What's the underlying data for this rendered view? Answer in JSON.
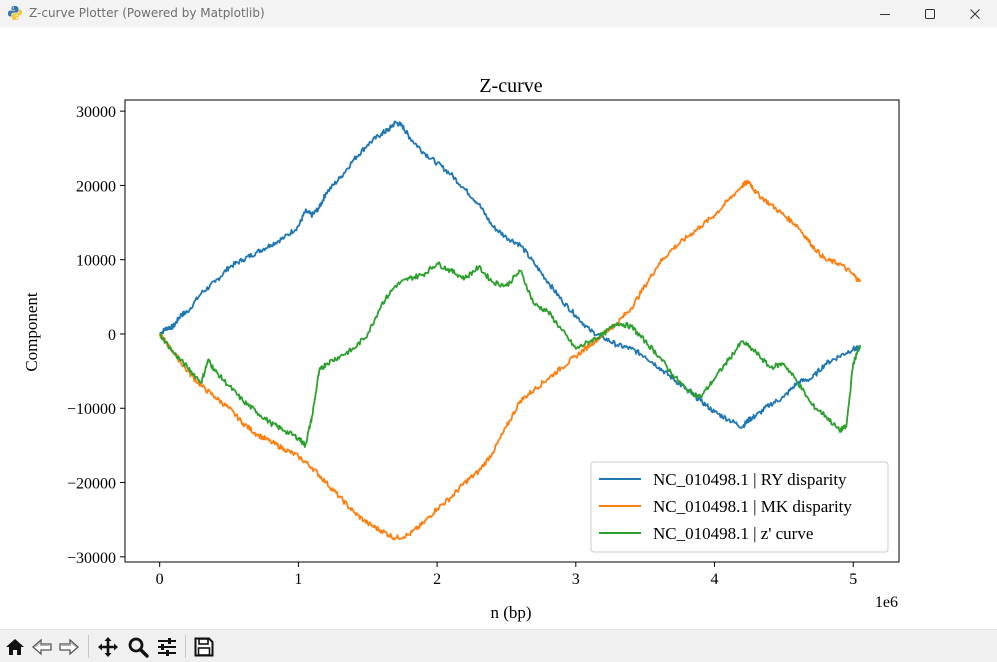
{
  "window": {
    "title": "Z-curve Plotter (Powered by Matplotlib)",
    "icon": "python-icon",
    "controls": [
      "minimize-icon",
      "maximize-icon",
      "close-icon"
    ]
  },
  "toolbar": {
    "tools": [
      "home-icon",
      "back-arrow-icon",
      "forward-arrow-icon",
      "pan-move-icon",
      "zoom-magnifier-icon",
      "configure-subplots-icon",
      "save-floppy-icon"
    ]
  },
  "chart_data": {
    "type": "line",
    "title": "Z-curve",
    "xlabel": "n (bp)",
    "ylabel": "Component",
    "x_offset_text": "1e6",
    "xlim": [
      -0.25,
      5.33
    ],
    "ylim": [
      -30700,
      31500
    ],
    "xticks": [
      0,
      1,
      2,
      3,
      4,
      5
    ],
    "xtick_labels": [
      "0",
      "1",
      "2",
      "3",
      "4",
      "5"
    ],
    "yticks": [
      30000,
      20000,
      10000,
      0,
      -10000,
      -20000,
      -30000
    ],
    "ytick_labels": [
      "30000",
      "20000",
      "10000",
      "0",
      "−10000",
      "−20000",
      "−30000"
    ],
    "grid": false,
    "legend_position": "lower-right",
    "x_units": "millions of bp",
    "series": [
      {
        "name": "NC_010498.1 | RY disparity",
        "color": "#1f77b4",
        "x": [
          0,
          0.05,
          0.1,
          0.15,
          0.2,
          0.3,
          0.4,
          0.5,
          0.6,
          0.7,
          0.8,
          0.9,
          1.0,
          1.05,
          1.1,
          1.15,
          1.2,
          1.3,
          1.4,
          1.5,
          1.6,
          1.65,
          1.7,
          1.75,
          1.8,
          1.9,
          2.0,
          2.1,
          2.2,
          2.3,
          2.4,
          2.5,
          2.6,
          2.7,
          2.8,
          2.9,
          3.0,
          3.1,
          3.2,
          3.3,
          3.4,
          3.5,
          3.6,
          3.7,
          3.8,
          3.9,
          4.0,
          4.1,
          4.2,
          4.25,
          4.3,
          4.4,
          4.5,
          4.6,
          4.7,
          4.8,
          4.9,
          5.0,
          5.05
        ],
        "y": [
          0,
          800,
          1000,
          2500,
          3000,
          5500,
          7000,
          9000,
          10000,
          11000,
          12000,
          13000,
          14500,
          16500,
          16000,
          17000,
          19000,
          21000,
          23500,
          25500,
          27000,
          27500,
          28500,
          28000,
          26500,
          24500,
          23000,
          21500,
          19500,
          17500,
          14500,
          13000,
          12000,
          9500,
          7000,
          4500,
          2500,
          500,
          -500,
          -1500,
          -2000,
          -3000,
          -4500,
          -6000,
          -7500,
          -9000,
          -10500,
          -11500,
          -12500,
          -11500,
          -11000,
          -9500,
          -8500,
          -6500,
          -6000,
          -4000,
          -3000,
          -2000,
          -2000
        ]
      },
      {
        "name": "NC_010498.1 | MK disparity",
        "color": "#ff7f0e",
        "x": [
          0,
          0.1,
          0.2,
          0.3,
          0.4,
          0.5,
          0.6,
          0.7,
          0.8,
          0.9,
          1.0,
          1.1,
          1.2,
          1.3,
          1.4,
          1.5,
          1.6,
          1.7,
          1.8,
          1.9,
          2.0,
          2.1,
          2.2,
          2.3,
          2.4,
          2.5,
          2.6,
          2.7,
          2.8,
          2.9,
          3.0,
          3.1,
          3.2,
          3.3,
          3.4,
          3.5,
          3.6,
          3.7,
          3.8,
          3.9,
          4.0,
          4.1,
          4.2,
          4.25,
          4.3,
          4.4,
          4.5,
          4.6,
          4.7,
          4.8,
          4.9,
          5.0,
          5.05
        ],
        "y": [
          0,
          -2500,
          -5000,
          -7000,
          -8500,
          -10000,
          -12000,
          -13500,
          -14500,
          -15500,
          -16500,
          -18000,
          -20000,
          -22000,
          -24000,
          -25500,
          -26500,
          -27500,
          -27000,
          -25500,
          -23500,
          -22000,
          -20000,
          -18500,
          -16000,
          -12500,
          -9000,
          -7500,
          -6000,
          -4500,
          -3000,
          -1500,
          0,
          1500,
          3500,
          6500,
          9500,
          11500,
          13000,
          14500,
          16000,
          18000,
          20000,
          20500,
          19000,
          17500,
          16000,
          14500,
          12000,
          10000,
          9500,
          8000,
          7000
        ]
      },
      {
        "name": "NC_010498.1 | z' curve",
        "color": "#2ca02c",
        "x": [
          0,
          0.1,
          0.2,
          0.3,
          0.35,
          0.4,
          0.5,
          0.6,
          0.7,
          0.8,
          0.9,
          1.0,
          1.05,
          1.1,
          1.15,
          1.2,
          1.3,
          1.4,
          1.5,
          1.6,
          1.7,
          1.8,
          1.9,
          2.0,
          2.1,
          2.2,
          2.3,
          2.4,
          2.5,
          2.6,
          2.7,
          2.8,
          2.9,
          3.0,
          3.1,
          3.2,
          3.3,
          3.4,
          3.5,
          3.6,
          3.7,
          3.8,
          3.9,
          4.0,
          4.1,
          4.2,
          4.3,
          4.4,
          4.5,
          4.6,
          4.7,
          4.8,
          4.9,
          4.95,
          5.0,
          5.05
        ],
        "y": [
          0,
          -2500,
          -4500,
          -6500,
          -3500,
          -5000,
          -7000,
          -9000,
          -10500,
          -12000,
          -13000,
          -14000,
          -15000,
          -11000,
          -5000,
          -4000,
          -3000,
          -2000,
          0,
          4000,
          6500,
          7500,
          8000,
          9500,
          8500,
          7500,
          9000,
          7000,
          6500,
          8500,
          4000,
          3000,
          500,
          -2000,
          -1000,
          0,
          1500,
          1000,
          -1000,
          -3000,
          -5500,
          -7500,
          -8500,
          -6000,
          -3500,
          -1000,
          -2500,
          -4500,
          -4000,
          -6500,
          -9500,
          -11000,
          -13000,
          -12500,
          -4000,
          -1500
        ]
      }
    ]
  }
}
